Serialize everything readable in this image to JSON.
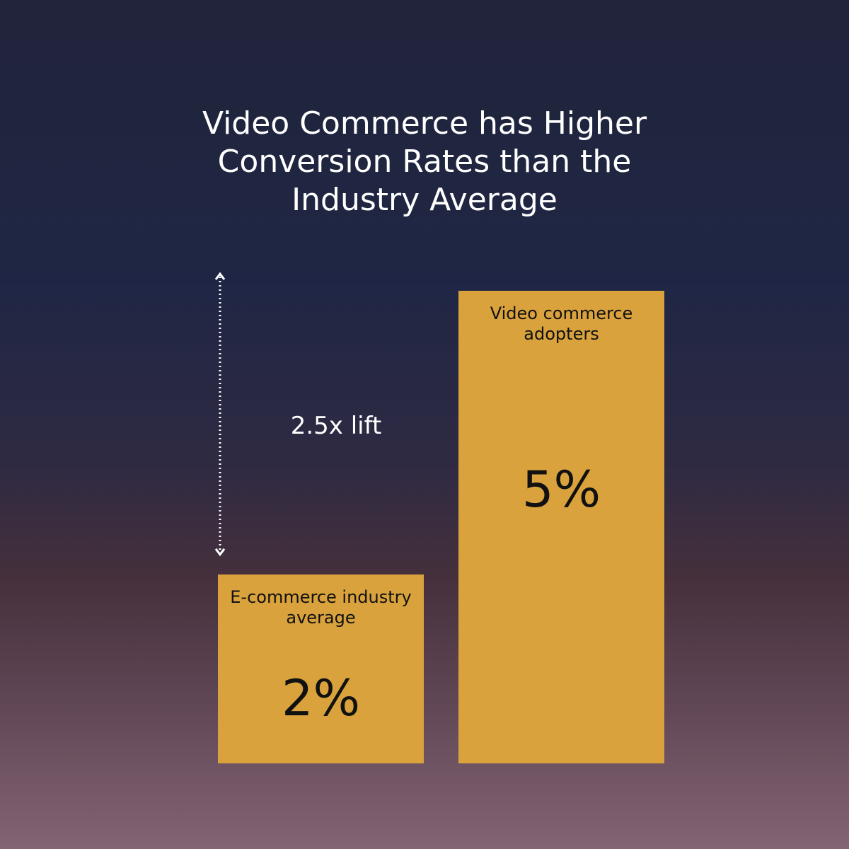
{
  "chart_data": {
    "type": "bar",
    "title": "Video Commerce has Higher Conversion Rates than the Industry Average",
    "categories": [
      "E-commerce industry average",
      "Video commerce adopters"
    ],
    "values": [
      2,
      5
    ],
    "value_labels": [
      "2%",
      "5%"
    ],
    "color": "#d9a23c",
    "annotation": "2.5x lift"
  }
}
